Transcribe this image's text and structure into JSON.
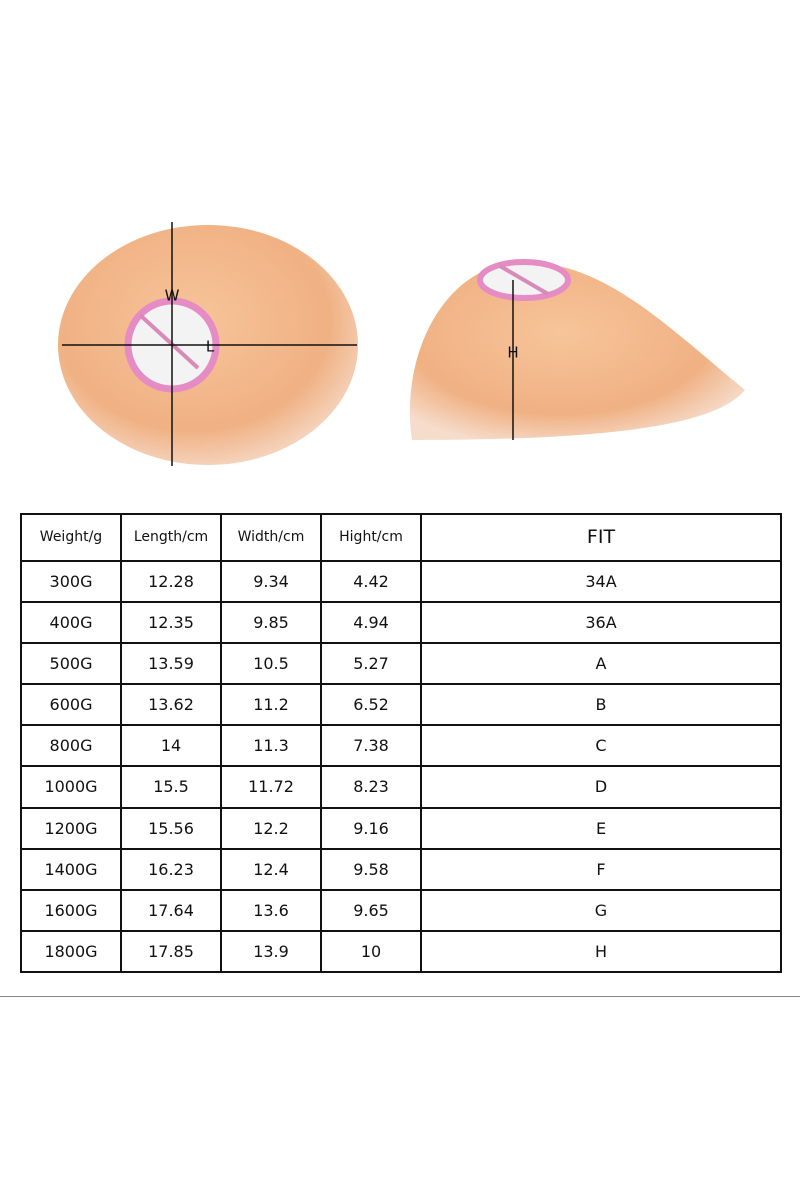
{
  "diagram": {
    "labels": {
      "width": "W",
      "length": "L",
      "height": "H"
    }
  },
  "table": {
    "header": [
      "Weight/g",
      "Length/cm",
      "Width/cm",
      "Hight/cm",
      "FIT"
    ],
    "rows": [
      [
        "300G",
        "12.28",
        "9.34",
        "4.42",
        "34A"
      ],
      [
        "400G",
        "12.35",
        "9.85",
        "4.94",
        "36A"
      ],
      [
        "500G",
        "13.59",
        "10.5",
        "5.27",
        "A"
      ],
      [
        "600G",
        "13.62",
        "11.2",
        "6.52",
        "B"
      ],
      [
        "800G",
        "14",
        "11.3",
        "7.38",
        "C"
      ],
      [
        "1000G",
        "15.5",
        "11.72",
        "8.23",
        "D"
      ],
      [
        "1200G",
        "15.56",
        "12.2",
        "9.16",
        "E"
      ],
      [
        "1400G",
        "16.23",
        "12.4",
        "9.58",
        "F"
      ],
      [
        "1600G",
        "17.64",
        "13.6",
        "9.65",
        "G"
      ],
      [
        "1800G",
        "17.85",
        "13.9",
        "10",
        "H"
      ]
    ]
  }
}
